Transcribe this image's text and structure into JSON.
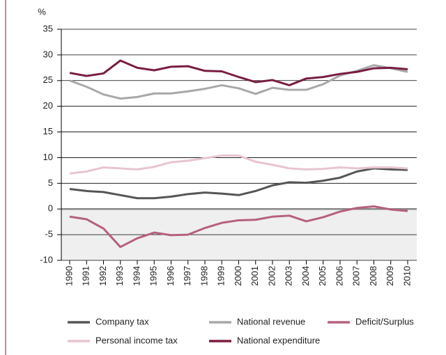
{
  "chart_data": {
    "type": "line",
    "y_label": "%",
    "categories": [
      "1990",
      "1991",
      "1992",
      "1993",
      "1994",
      "1995",
      "1996",
      "1997",
      "1998",
      "1999",
      "2000",
      "2001",
      "2002",
      "2003",
      "2004",
      "2005",
      "2006",
      "2007",
      "2008",
      "2009",
      "2010"
    ],
    "ylim": [
      -10,
      35
    ],
    "yticks": [
      -10,
      -5,
      0,
      5,
      10,
      15,
      20,
      25,
      30,
      35
    ],
    "grid": true,
    "legend": "bottom",
    "series": [
      {
        "name": "Company tax",
        "color": "#555555",
        "values": [
          3.9,
          3.5,
          3.3,
          2.7,
          2.1,
          2.1,
          2.4,
          2.9,
          3.2,
          3.0,
          2.7,
          3.5,
          4.6,
          5.2,
          5.1,
          5.5,
          6.1,
          7.3,
          7.9,
          7.7,
          7.6
        ]
      },
      {
        "name": "National revenue",
        "color": "#a8a8a8",
        "values": [
          25.0,
          23.8,
          22.3,
          21.5,
          21.8,
          22.5,
          22.5,
          22.9,
          23.4,
          24.1,
          23.5,
          22.4,
          23.6,
          23.2,
          23.2,
          24.3,
          26.0,
          26.9,
          28.0,
          27.4,
          26.7
        ]
      },
      {
        "name": "Deficit/Surplus",
        "color": "#b5607f",
        "values": [
          -1.5,
          -2.0,
          -3.8,
          -7.4,
          -5.7,
          -4.6,
          -5.1,
          -5.0,
          -3.7,
          -2.7,
          -2.2,
          -2.1,
          -1.5,
          -1.3,
          -2.4,
          -1.6,
          -0.5,
          0.2,
          0.5,
          -0.1,
          -0.4
        ]
      },
      {
        "name": "Personal income tax",
        "color": "#e8c4d0",
        "values": [
          6.9,
          7.3,
          8.1,
          7.9,
          7.7,
          8.2,
          9.1,
          9.4,
          9.9,
          10.4,
          10.4,
          9.2,
          8.6,
          7.9,
          7.7,
          7.8,
          8.1,
          7.9,
          8.1,
          8.1,
          7.9
        ]
      },
      {
        "name": "National expenditure",
        "color": "#7a1d42",
        "values": [
          26.5,
          25.9,
          26.4,
          28.9,
          27.5,
          27.0,
          27.7,
          27.8,
          26.9,
          26.8,
          25.7,
          24.7,
          25.1,
          24.1,
          25.4,
          25.7,
          26.3,
          26.7,
          27.4,
          27.5,
          27.2
        ]
      }
    ]
  }
}
